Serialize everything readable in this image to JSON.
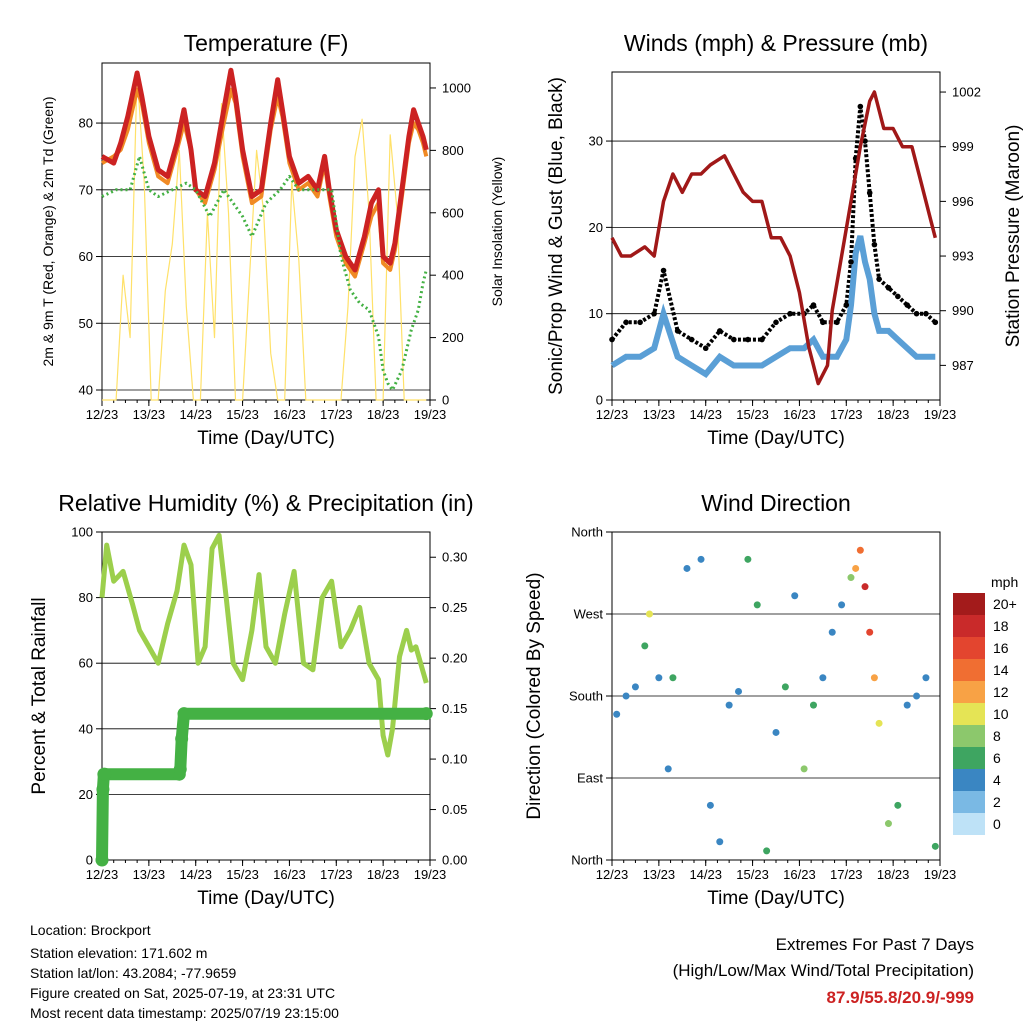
{
  "footer": {
    "location": "Location: Brockport",
    "elevation": "Station elevation: 171.602 m",
    "latlon": "Station lat/lon: 43.2084; -77.9659",
    "created": "Figure created on Sat, 2025-07-19, at 23:31 UTC",
    "recent": "Most recent data timestamp: 2025/07/19 23:15:00"
  },
  "extremes": {
    "title": "Extremes For Past 7 Days",
    "subtitle": "(High/Low/Max Wind/Total Precipitation)",
    "values": "87.9/55.8/20.9/-999"
  },
  "colors": {
    "temp2m": "#cc2222",
    "temp9m": "#f08a24",
    "dewpoint": "#44b144",
    "solar": "#ffe169",
    "gust": "#000000",
    "wind": "#5a9fd6",
    "pressure": "#a01818",
    "rh": "#9ccf4c",
    "precip": "#44b144"
  },
  "chart_data": [
    {
      "type": "line",
      "title": "Temperature (F)",
      "xlabel": "Time (Day/UTC)",
      "ylabel": "2m & 9m T (Red, Orange) & 2m Td (Green)",
      "y2label": "Solar Insolation (Yellow)",
      "x_ticks": [
        "12/23",
        "13/23",
        "14/23",
        "15/23",
        "16/23",
        "17/23",
        "18/23",
        "19/23"
      ],
      "xlim": [
        0,
        7
      ],
      "ylim": [
        38.5,
        89
      ],
      "y_ticks": [
        40,
        50,
        60,
        70,
        80
      ],
      "y2lim": [
        0,
        1080
      ],
      "y2_ticks": [
        0,
        200,
        400,
        600,
        800,
        1000
      ],
      "grid": true,
      "series": [
        {
          "axis": "left",
          "x": [
            0,
            0.25,
            0.4,
            0.55,
            0.75,
            0.85,
            1.0,
            1.2,
            1.4,
            1.6,
            1.75,
            1.9,
            2.0,
            2.2,
            2.4,
            2.6,
            2.75,
            2.85,
            3.0,
            3.2,
            3.4,
            3.6,
            3.75,
            3.85,
            4.0,
            4.2,
            4.4,
            4.6,
            4.75,
            4.85,
            5.0,
            5.2,
            5.4,
            5.6,
            5.75,
            5.9,
            6.0,
            6.15,
            6.25,
            6.4,
            6.55,
            6.65,
            6.75,
            6.85,
            6.92
          ],
          "y": [
            75,
            74,
            77,
            81,
            87.5,
            84,
            78,
            73,
            72,
            77,
            82,
            76,
            70,
            69,
            74,
            82,
            87.9,
            84,
            76,
            69,
            70,
            80,
            86.5,
            82,
            75,
            71,
            72,
            70,
            75,
            70,
            64,
            60,
            58,
            63,
            68,
            70,
            60,
            59,
            62,
            70,
            78,
            82,
            80,
            78,
            76
          ]
        },
        {
          "axis": "left",
          "x": [
            0,
            0.25,
            0.4,
            0.55,
            0.75,
            0.85,
            1.0,
            1.2,
            1.4,
            1.6,
            1.75,
            1.9,
            2.0,
            2.2,
            2.4,
            2.6,
            2.75,
            2.85,
            3.0,
            3.2,
            3.4,
            3.6,
            3.75,
            3.85,
            4.0,
            4.2,
            4.4,
            4.6,
            4.75,
            4.85,
            5.0,
            5.2,
            5.4,
            5.6,
            5.75,
            5.9,
            6.0,
            6.15,
            6.25,
            6.4,
            6.55,
            6.65,
            6.75,
            6.85,
            6.92
          ],
          "y": [
            74,
            75,
            76,
            79,
            85,
            83,
            77,
            72,
            71,
            76,
            80,
            76,
            70,
            68,
            73,
            80,
            85,
            83,
            75,
            68,
            69,
            79,
            84,
            81,
            74,
            70,
            71,
            69,
            74,
            69,
            63,
            59,
            57,
            62,
            66,
            68,
            59,
            58,
            61,
            69,
            77,
            80,
            79,
            77,
            75
          ]
        },
        {
          "axis": "left",
          "x": [
            0,
            0.3,
            0.6,
            0.8,
            1.0,
            1.2,
            1.5,
            1.8,
            2.0,
            2.3,
            2.6,
            2.8,
            3.0,
            3.2,
            3.5,
            3.8,
            4.0,
            4.2,
            4.4,
            4.6,
            4.9,
            5.1,
            5.3,
            5.5,
            5.7,
            5.9,
            6.0,
            6.1,
            6.2,
            6.4,
            6.6,
            6.75,
            6.85,
            6.92
          ],
          "y": [
            69,
            70,
            70,
            75,
            70,
            69,
            70,
            71,
            70,
            66,
            70,
            68,
            66,
            63,
            68,
            70,
            72,
            70,
            70,
            70,
            70,
            60,
            55,
            53,
            52,
            48,
            43,
            41,
            40,
            43,
            49,
            52,
            56,
            58
          ]
        },
        {
          "axis": "right",
          "x": [
            0,
            0.3,
            0.45,
            0.6,
            0.75,
            0.9,
            1.05,
            1.2,
            1.35,
            1.5,
            1.65,
            1.8,
            1.95,
            2.1,
            2.25,
            2.4,
            2.55,
            2.7,
            2.85,
            3.0,
            3.15,
            3.3,
            3.45,
            3.6,
            3.75,
            3.9,
            4.05,
            4.2,
            4.35,
            4.5,
            4.65,
            4.8,
            4.95,
            5.1,
            5.25,
            5.4,
            5.55,
            5.7,
            5.85,
            6.0,
            6.15,
            6.3,
            6.45,
            6.6,
            6.75,
            6.92
          ],
          "y": [
            0,
            0,
            400,
            200,
            1050,
            700,
            0,
            0,
            350,
            500,
            800,
            300,
            0,
            0,
            600,
            200,
            950,
            600,
            0,
            0,
            400,
            800,
            600,
            150,
            0,
            0,
            700,
            450,
            0,
            0,
            0,
            0,
            0,
            0,
            300,
            780,
            900,
            600,
            0,
            0,
            850,
            600,
            0,
            0,
            0,
            0
          ]
        }
      ]
    },
    {
      "type": "line",
      "title": "Winds (mph) & Pressure (mb)",
      "xlabel": "Time (Day/UTC)",
      "ylabel": "Sonic/Prop Wind & Gust (Blue, Black)",
      "y2label": "Station Pressure (Maroon)",
      "x_ticks": [
        "12/23",
        "13/23",
        "14/23",
        "15/23",
        "16/23",
        "17/23",
        "18/23",
        "19/23"
      ],
      "xlim": [
        0,
        7
      ],
      "ylim": [
        0,
        38
      ],
      "y_ticks": [
        0,
        10,
        20,
        30
      ],
      "y2lim": [
        985.1,
        1003.1
      ],
      "y2_ticks": [
        987,
        990,
        993,
        996,
        999,
        1002
      ],
      "grid": true,
      "series": [
        {
          "axis": "left",
          "x": [
            0,
            0.3,
            0.6,
            0.9,
            1.1,
            1.4,
            1.7,
            2.0,
            2.3,
            2.6,
            2.9,
            3.2,
            3.5,
            3.8,
            4.1,
            4.3,
            4.5,
            4.8,
            5.0,
            5.1,
            5.2,
            5.3,
            5.4,
            5.5,
            5.6,
            5.7,
            5.9,
            6.1,
            6.3,
            6.5,
            6.7,
            6.9
          ],
          "y": [
            7,
            9,
            9,
            10,
            15,
            8,
            7,
            6,
            8,
            7,
            7,
            7,
            9,
            10,
            10,
            11,
            9,
            9,
            11,
            16,
            28,
            34,
            30,
            24,
            18,
            14,
            13,
            12,
            11,
            10,
            10,
            9
          ]
        },
        {
          "axis": "left",
          "x": [
            0,
            0.3,
            0.6,
            0.9,
            1.1,
            1.4,
            1.7,
            2.0,
            2.3,
            2.6,
            2.9,
            3.2,
            3.5,
            3.8,
            4.1,
            4.3,
            4.5,
            4.8,
            5.0,
            5.1,
            5.2,
            5.3,
            5.4,
            5.5,
            5.6,
            5.7,
            5.9,
            6.1,
            6.3,
            6.5,
            6.7,
            6.9
          ],
          "y": [
            4,
            5,
            5,
            6,
            10,
            5,
            4,
            3,
            5,
            4,
            4,
            4,
            5,
            6,
            6,
            7,
            5,
            5,
            7,
            11,
            17,
            19,
            16,
            14,
            10,
            8,
            8,
            7,
            6,
            5,
            5,
            5
          ]
        },
        {
          "axis": "right",
          "x": [
            0,
            0.2,
            0.4,
            0.7,
            0.9,
            1.1,
            1.3,
            1.5,
            1.7,
            1.9,
            2.1,
            2.4,
            2.6,
            2.8,
            3.0,
            3.2,
            3.4,
            3.6,
            3.8,
            4.0,
            4.2,
            4.4,
            4.6,
            4.7,
            4.9,
            5.1,
            5.3,
            5.5,
            5.6,
            5.8,
            6.0,
            6.2,
            6.4,
            6.6,
            6.8,
            6.9
          ],
          "y": [
            994,
            993,
            993,
            993.5,
            993,
            996,
            997.5,
            996.5,
            997.5,
            997.5,
            998,
            998.5,
            997.5,
            996.5,
            996,
            996,
            994,
            994,
            993,
            991,
            988,
            986,
            987,
            990,
            993,
            996,
            999,
            1001.5,
            1002,
            1000,
            1000,
            999,
            999,
            997,
            995,
            994
          ]
        }
      ]
    },
    {
      "type": "line",
      "title": "Relative Humidity (%) & Precipitation (in)",
      "xlabel": "Time (Day/UTC)",
      "ylabel": "Percent & Total Rainfall",
      "x_ticks": [
        "12/23",
        "13/23",
        "14/23",
        "15/23",
        "16/23",
        "17/23",
        "18/23",
        "19/23"
      ],
      "xlim": [
        0,
        7
      ],
      "ylim": [
        0,
        100
      ],
      "y_ticks": [
        0,
        20,
        40,
        60,
        80,
        100
      ],
      "y2lim": [
        0,
        0.325
      ],
      "y2_ticks": [
        "0.00",
        "0.05",
        "0.10",
        "0.15",
        "0.20",
        "0.25",
        "0.30"
      ],
      "grid": true,
      "series": [
        {
          "axis": "left",
          "x": [
            0,
            0.1,
            0.25,
            0.45,
            0.65,
            0.8,
            1.0,
            1.2,
            1.4,
            1.6,
            1.75,
            1.9,
            2.05,
            2.2,
            2.35,
            2.5,
            2.65,
            2.8,
            3.0,
            3.2,
            3.35,
            3.5,
            3.7,
            3.9,
            4.1,
            4.3,
            4.5,
            4.7,
            4.9,
            5.1,
            5.3,
            5.5,
            5.7,
            5.9,
            6.0,
            6.1,
            6.2,
            6.35,
            6.5,
            6.6,
            6.7,
            6.8,
            6.92
          ],
          "y": [
            80,
            96,
            85,
            88,
            78,
            70,
            65,
            60,
            72,
            82,
            96,
            90,
            60,
            65,
            95,
            99,
            80,
            60,
            55,
            70,
            87,
            65,
            60,
            75,
            88,
            60,
            58,
            80,
            85,
            65,
            70,
            77,
            60,
            55,
            38,
            32,
            40,
            62,
            70,
            64,
            65,
            60,
            54
          ]
        },
        {
          "axis": "right",
          "x": [
            0,
            0.02,
            0.04,
            0.06,
            1.65,
            1.67,
            1.7,
            1.75,
            6.92
          ],
          "y": [
            0,
            0.07,
            0.085,
            0.085,
            0.085,
            0.09,
            0.12,
            0.145,
            0.145
          ]
        }
      ]
    },
    {
      "type": "scatter",
      "title": "Wind Direction",
      "xlabel": "Time (Day/UTC)",
      "ylabel": "Direction (Colored By Speed)",
      "x_ticks": [
        "12/23",
        "13/23",
        "14/23",
        "15/23",
        "16/23",
        "17/23",
        "18/23",
        "19/23"
      ],
      "xlim": [
        0,
        7
      ],
      "y_ticks": [
        "North",
        "East",
        "South",
        "West",
        "North"
      ],
      "ylim": [
        0,
        360
      ],
      "grid": true,
      "colorbar": {
        "label": "mph",
        "ticks": [
          "20+",
          "18",
          "16",
          "14",
          "12",
          "10",
          "8",
          "6",
          "4",
          "2",
          "0"
        ],
        "colors": [
          "#a31b1b",
          "#c92a2a",
          "#e3452f",
          "#f06e32",
          "#f8a245",
          "#e5e455",
          "#8cc86c",
          "#3ea561",
          "#3a86c2",
          "#7ab9e4",
          "#bee2f7"
        ]
      },
      "series": [
        {
          "name": "",
          "x": [
            0.1,
            0.3,
            0.5,
            0.7,
            0.8,
            1.0,
            1.2,
            1.3,
            1.6,
            1.9,
            2.1,
            2.3,
            2.5,
            2.7,
            2.9,
            3.1,
            3.3,
            3.5,
            3.7,
            3.9,
            4.1,
            4.3,
            4.5,
            4.7,
            4.9,
            5.1,
            5.2,
            5.3,
            5.4,
            5.5,
            5.6,
            5.7,
            5.9,
            6.1,
            6.3,
            6.5,
            6.7,
            6.9
          ],
          "y": [
            160,
            180,
            190,
            235,
            270,
            200,
            100,
            200,
            320,
            330,
            60,
            20,
            170,
            185,
            330,
            280,
            10,
            140,
            190,
            290,
            100,
            170,
            200,
            250,
            280,
            310,
            320,
            340,
            300,
            250,
            200,
            150,
            40,
            60,
            170,
            180,
            200,
            15
          ],
          "speed": [
            3,
            4,
            4,
            6,
            10,
            4,
            3,
            5,
            3,
            3,
            4,
            4,
            3,
            4,
            6,
            5,
            6,
            4,
            5,
            4,
            7,
            5,
            4,
            3,
            3,
            8,
            12,
            14,
            18,
            16,
            12,
            10,
            8,
            6,
            4,
            4,
            3,
            6
          ]
        }
      ]
    }
  ]
}
